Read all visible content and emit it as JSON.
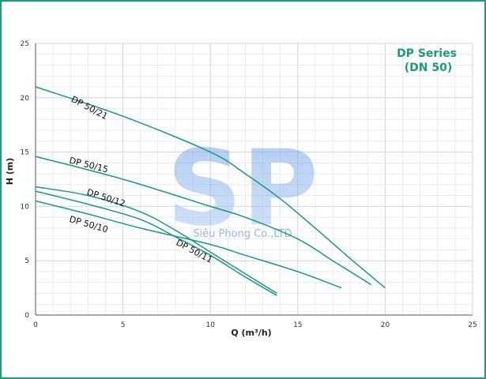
{
  "chart_data": {
    "type": "line",
    "title": "DP Series",
    "subtitle": "(DN 50)",
    "xlabel": "Q (m³/h)",
    "ylabel": "H (m)",
    "xlim": [
      0,
      25
    ],
    "ylim": [
      0,
      25
    ],
    "xticks": [
      "0",
      "5",
      "10",
      "15",
      "20",
      "25"
    ],
    "yticks": [
      "0",
      "5",
      "10",
      "15",
      "20",
      "25"
    ],
    "grid": true,
    "colors": {
      "series": "#1a9a7e",
      "title": "#1a9a7e",
      "grid": "#e3e3e3",
      "axis": "#555555",
      "watermark": "#7aa6e0"
    },
    "watermark": {
      "logo": "SP",
      "text": "Siêu Phong Co.,LTD"
    },
    "series": [
      {
        "name": "DP 50/21",
        "x": [
          0,
          5,
          10,
          12,
          14,
          16,
          18,
          20
        ],
        "y": [
          21,
          18.3,
          15,
          13,
          10.7,
          8,
          5.2,
          2.5
        ]
      },
      {
        "name": "DP 50/15",
        "x": [
          0,
          5,
          10,
          12,
          15,
          17,
          19.2
        ],
        "y": [
          14.6,
          12.5,
          10,
          9,
          7,
          5,
          2.8
        ]
      },
      {
        "name": "DP 50/12",
        "x": [
          0,
          3,
          6,
          8,
          10,
          12,
          13.8
        ],
        "y": [
          11.8,
          11,
          9.5,
          7.8,
          5.8,
          3.8,
          2
        ]
      },
      {
        "name": "DP 50/11",
        "x": [
          0,
          3,
          6,
          8,
          10,
          12,
          13.8
        ],
        "y": [
          11.4,
          10.2,
          8.8,
          7.2,
          5.5,
          3.5,
          1.8
        ]
      },
      {
        "name": "DP 50/10",
        "x": [
          0,
          3,
          6,
          10,
          12,
          15,
          17.5
        ],
        "y": [
          10.5,
          9.3,
          8,
          6.5,
          5.5,
          4,
          2.5
        ]
      }
    ],
    "series_labels": [
      {
        "text": "DP 50/21",
        "x": 2.0,
        "y": 19.7,
        "rotate": 28
      },
      {
        "text": "DP 50/15",
        "x": 1.9,
        "y": 14.0,
        "rotate": 14
      },
      {
        "text": "DP 50/12",
        "x": 2.9,
        "y": 11.1,
        "rotate": 18
      },
      {
        "text": "DP 50/10",
        "x": 1.9,
        "y": 8.6,
        "rotate": 16
      },
      {
        "text": "DP 50/11",
        "x": 8.0,
        "y": 6.5,
        "rotate": 28
      }
    ]
  }
}
